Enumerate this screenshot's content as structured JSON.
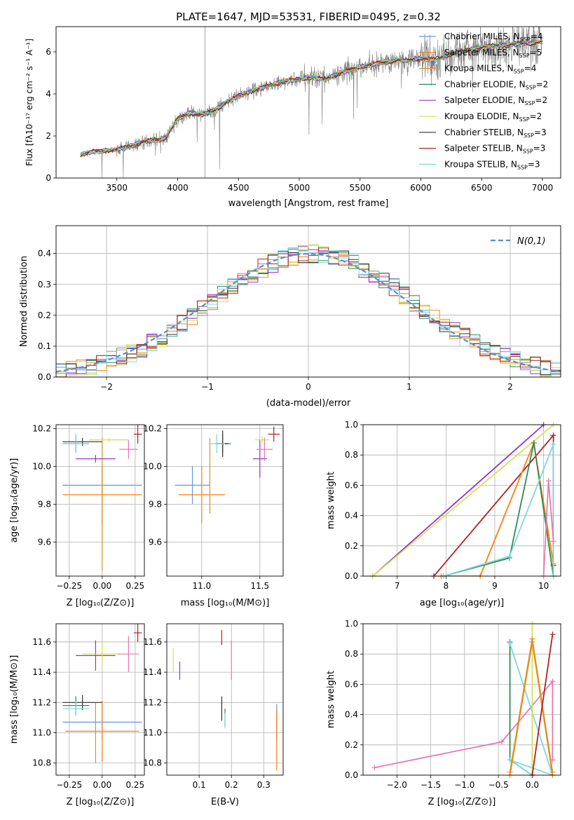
{
  "figure": {
    "title": "PLATE=1647, MJD=53531, FIBERID=0495, z=0.32",
    "spectrum_legend": [
      {
        "name": "Chabrier MILES",
        "nssp": "4",
        "color": "#6495ed"
      },
      {
        "name": "Salpeter MILES",
        "nssp": "5",
        "color": "#ff7f0e"
      },
      {
        "name": "Kroupa MILES",
        "nssp": "4",
        "color": "#d99425"
      },
      {
        "name": "Chabrier ELODIE",
        "nssp": "2",
        "color": "#2e8b57"
      },
      {
        "name": "Salpeter ELODIE",
        "nssp": "2",
        "color": "#9932cc"
      },
      {
        "name": "Kroupa ELODIE",
        "nssp": "2",
        "color": "#d4e157"
      },
      {
        "name": "Chabrier STELIB",
        "nssp": "3",
        "color": "#333333"
      },
      {
        "name": "Salpeter STELIB",
        "nssp": "3",
        "color": "#b22222"
      },
      {
        "name": "Kroupa STELIB",
        "nssp": "3",
        "color": "#7fd8d8"
      }
    ],
    "nssp_prefix": "N",
    "nssp_sub": "SSP",
    "hist_legend": "N(0,1)"
  },
  "chart_data": [
    {
      "id": "spectrum",
      "type": "line",
      "xlabel": "wavelength [Angstrom, rest frame]",
      "ylabel": "Flux [f_λ 10^-17 erg cm^-2 s^-1 A^-1]",
      "xlim": [
        3000,
        7150
      ],
      "ylim": [
        0,
        7.2
      ],
      "xticks": [
        3500,
        4000,
        4500,
        5000,
        5500,
        6000,
        6500,
        7000
      ],
      "yticks": [
        0,
        2,
        4,
        6
      ],
      "grid": false,
      "legend_position": "top-right",
      "model_continuum": {
        "x": [
          3200,
          3300,
          3400,
          3500,
          3600,
          3700,
          3800,
          3900,
          4000,
          4100,
          4200,
          4300,
          4400,
          4500,
          4600,
          4700,
          4800,
          4900,
          5000,
          5100,
          5200,
          5300,
          5400,
          5500,
          5600,
          5700,
          5800,
          5900,
          6000,
          6100,
          6200,
          6300,
          6400,
          6500,
          6600,
          6700,
          6800,
          6900,
          7000
        ],
        "y": [
          1.1,
          1.25,
          1.3,
          1.35,
          1.5,
          1.7,
          1.8,
          1.9,
          2.8,
          3.1,
          3.0,
          3.2,
          3.6,
          3.9,
          4.1,
          4.3,
          4.5,
          4.6,
          4.7,
          4.8,
          4.7,
          4.9,
          5.1,
          5.3,
          5.4,
          5.5,
          5.6,
          5.6,
          5.7,
          5.6,
          5.8,
          6.0,
          6.1,
          6.2,
          6.3,
          6.3,
          6.4,
          6.4,
          6.5
        ]
      }
    },
    {
      "id": "residual-histogram",
      "type": "line",
      "xlabel": "(data-model)/error",
      "ylabel": "Normed distribution",
      "xlim": [
        -2.5,
        2.5
      ],
      "ylim": [
        0,
        0.49
      ],
      "xticks": [
        -2,
        -1,
        0,
        1,
        2
      ],
      "yticks": [
        0.0,
        0.1,
        0.2,
        0.3,
        0.4
      ],
      "grid": true,
      "legend_position": "top-right",
      "gaussian": {
        "mean": 0,
        "sigma": 1
      }
    },
    {
      "id": "age-vs-Z",
      "type": "scatter",
      "xlabel": "Z [log10(Z/Zsun)]",
      "ylabel": "age [log10(age/yr)]",
      "xlim": [
        -0.35,
        0.32
      ],
      "ylim": [
        9.42,
        10.22
      ],
      "xticks": [
        -0.25,
        0.0,
        0.25
      ],
      "yticks": [
        9.6,
        9.8,
        10.0,
        10.2
      ],
      "grid": true,
      "points": [
        {
          "x": 0.0,
          "y": 9.9,
          "xerr": 0.3,
          "yerr": 0.1,
          "color": "#6495ed"
        },
        {
          "x": 0.0,
          "y": 9.85,
          "xerr": 0.3,
          "yerr": 0.15,
          "color": "#ff7f0e"
        },
        {
          "x": 0.0,
          "y": 9.8,
          "xerr": 0.0,
          "yerr": 0.35,
          "color": "#d99425"
        },
        {
          "x": -0.2,
          "y": 10.12,
          "xerr": 0.1,
          "yerr": 0.05,
          "color": "#2e8b57"
        },
        {
          "x": -0.05,
          "y": 10.04,
          "xerr": 0.15,
          "yerr": 0.02,
          "color": "#9932cc"
        },
        {
          "x": 0.05,
          "y": 10.14,
          "xerr": 0.15,
          "yerr": 0.01,
          "color": "#d4e157"
        },
        {
          "x": -0.15,
          "y": 10.13,
          "xerr": 0.15,
          "yerr": 0.02,
          "color": "#333333"
        },
        {
          "x": 0.27,
          "y": 10.17,
          "xerr": 0.03,
          "yerr": 0.05,
          "color": "#b22222"
        },
        {
          "x": -0.2,
          "y": 10.12,
          "xerr": 0.1,
          "yerr": 0.05,
          "color": "#7fd8d8"
        },
        {
          "x": 0.2,
          "y": 10.09,
          "xerr": 0.07,
          "yerr": 0.05,
          "color": "#e879b0"
        }
      ]
    },
    {
      "id": "age-vs-mass",
      "type": "scatter",
      "xlabel": "mass [log10(M/Msun)]",
      "ylabel": "",
      "xlim": [
        10.7,
        11.7
      ],
      "ylim": [
        9.42,
        10.22
      ],
      "xticks": [
        11.0,
        11.5
      ],
      "yticks": [
        9.6,
        9.8,
        10.0,
        10.2
      ],
      "grid": true,
      "points": [
        {
          "x": 10.92,
          "y": 9.9,
          "xerr": 0.15,
          "yerr": 0.1,
          "color": "#6495ed"
        },
        {
          "x": 11.0,
          "y": 9.85,
          "xerr": 0.2,
          "yerr": 0.15,
          "color": "#ff7f0e"
        },
        {
          "x": 11.07,
          "y": 9.95,
          "xerr": 0.0,
          "yerr": 0.2,
          "color": "#d99425"
        },
        {
          "x": 11.18,
          "y": 10.12,
          "xerr": 0.07,
          "yerr": 0.05,
          "color": "#2e8b57"
        },
        {
          "x": 11.5,
          "y": 10.04,
          "xerr": 0.06,
          "yerr": 0.1,
          "color": "#9932cc"
        },
        {
          "x": 11.52,
          "y": 10.14,
          "xerr": 0.06,
          "yerr": 0.02,
          "color": "#d4e157"
        },
        {
          "x": 11.18,
          "y": 10.12,
          "xerr": 0.05,
          "yerr": 0.07,
          "color": "#333333"
        },
        {
          "x": 11.62,
          "y": 10.17,
          "xerr": 0.05,
          "yerr": 0.04,
          "color": "#b22222"
        },
        {
          "x": 11.13,
          "y": 10.12,
          "xerr": 0.07,
          "yerr": 0.05,
          "color": "#7fd8d8"
        },
        {
          "x": 11.54,
          "y": 10.09,
          "xerr": 0.07,
          "yerr": 0.06,
          "color": "#e879b0"
        }
      ]
    },
    {
      "id": "mass-weight-vs-age",
      "type": "line",
      "xlabel": "age [log10(age/yr)]",
      "ylabel": "mass weight",
      "xlim": [
        6.3,
        10.35
      ],
      "ylim": [
        0,
        1.0
      ],
      "xticks": [
        7,
        8,
        9,
        10
      ],
      "yticks": [
        0.0,
        0.2,
        0.4,
        0.6,
        0.8,
        1.0
      ],
      "grid": true,
      "series": [
        {
          "color": "#9932cc",
          "x": [
            6.5,
            10.0
          ],
          "y": [
            0.0,
            1.0
          ]
        },
        {
          "color": "#d4e157",
          "x": [
            6.5,
            10.2
          ],
          "y": [
            0.0,
            1.0
          ]
        },
        {
          "color": "#b22222",
          "x": [
            7.75,
            10.2,
            10.2
          ],
          "y": [
            0.0,
            0.93,
            0.07
          ]
        },
        {
          "color": "#ff7f0e",
          "x": [
            7.9,
            8.7,
            9.8,
            10.2
          ],
          "y": [
            0.0,
            0.0,
            0.88,
            0.08
          ]
        },
        {
          "color": "#2e8b57",
          "x": [
            7.95,
            9.3,
            9.8,
            10.2
          ],
          "y": [
            0.0,
            0.12,
            0.88,
            0.0
          ]
        },
        {
          "color": "#7fd8d8",
          "x": [
            7.95,
            9.3,
            10.2,
            10.2
          ],
          "y": [
            0.0,
            0.13,
            0.87,
            0.0
          ]
        },
        {
          "color": "#e879b0",
          "x": [
            10.0,
            10.1,
            10.2
          ],
          "y": [
            0.0,
            0.63,
            0.23
          ]
        }
      ]
    },
    {
      "id": "mass-vs-Z",
      "type": "scatter",
      "xlabel": "Z [log10(Z/Zsun)]",
      "ylabel": "mass [log10(M/Msun)]",
      "xlim": [
        -0.35,
        0.32
      ],
      "ylim": [
        10.72,
        11.72
      ],
      "xticks": [
        -0.25,
        0.0,
        0.25
      ],
      "yticks": [
        10.8,
        11.0,
        11.2,
        11.4,
        11.6
      ],
      "grid": true,
      "points": [
        {
          "x": 0.0,
          "y": 11.07,
          "xerr": 0.3,
          "yerr": 0.12,
          "color": "#6495ed"
        },
        {
          "x": 0.0,
          "y": 11.01,
          "xerr": 0.28,
          "yerr": 0.2,
          "color": "#ff7f0e"
        },
        {
          "x": -0.05,
          "y": 11.0,
          "xerr": 0.0,
          "yerr": 0.2,
          "color": "#d99425"
        },
        {
          "x": -0.2,
          "y": 11.18,
          "xerr": 0.1,
          "yerr": 0.06,
          "color": "#2e8b57"
        },
        {
          "x": -0.05,
          "y": 11.51,
          "xerr": 0.15,
          "yerr": 0.1,
          "color": "#9932cc"
        },
        {
          "x": 0.0,
          "y": 11.52,
          "xerr": 0.15,
          "yerr": 0.08,
          "color": "#d4e157"
        },
        {
          "x": -0.15,
          "y": 11.2,
          "xerr": 0.15,
          "yerr": 0.05,
          "color": "#333333"
        },
        {
          "x": 0.27,
          "y": 11.66,
          "xerr": 0.03,
          "yerr": 0.06,
          "color": "#b22222"
        },
        {
          "x": -0.2,
          "y": 11.16,
          "xerr": 0.1,
          "yerr": 0.05,
          "color": "#7fd8d8"
        },
        {
          "x": 0.2,
          "y": 11.52,
          "xerr": 0.08,
          "yerr": 0.12,
          "color": "#e879b0"
        }
      ]
    },
    {
      "id": "mass-vs-EBV",
      "type": "scatter",
      "xlabel": "E(B-V)",
      "ylabel": "",
      "xlim": [
        0.0,
        0.36
      ],
      "ylim": [
        10.72,
        11.72
      ],
      "xticks": [
        0.1,
        0.2,
        0.3
      ],
      "yticks": [
        10.8,
        11.0,
        11.2,
        11.4,
        11.6
      ],
      "grid": true,
      "points": [
        {
          "x": 0.34,
          "y": 11.07,
          "xerr": 0.0,
          "yerr": 0.12,
          "color": "#6495ed"
        },
        {
          "x": 0.34,
          "y": 10.95,
          "xerr": 0.0,
          "yerr": 0.2,
          "color": "#ff7f0e"
        },
        {
          "x": 0.18,
          "y": 11.1,
          "xerr": 0.0,
          "yerr": 0.06,
          "color": "#2e8b57"
        },
        {
          "x": 0.04,
          "y": 11.41,
          "xerr": 0.0,
          "yerr": 0.06,
          "color": "#9932cc"
        },
        {
          "x": 0.02,
          "y": 11.48,
          "xerr": 0.0,
          "yerr": 0.08,
          "color": "#d4e157"
        },
        {
          "x": 0.17,
          "y": 11.16,
          "xerr": 0.0,
          "yerr": 0.08,
          "color": "#333333"
        },
        {
          "x": 0.17,
          "y": 11.63,
          "xerr": 0.0,
          "yerr": 0.05,
          "color": "#b22222"
        },
        {
          "x": 0.18,
          "y": 11.08,
          "xerr": 0.0,
          "yerr": 0.05,
          "color": "#7fd8d8"
        },
        {
          "x": 0.2,
          "y": 11.48,
          "xerr": 0.0,
          "yerr": 0.13,
          "color": "#e879b0"
        }
      ]
    },
    {
      "id": "mass-weight-vs-Z",
      "type": "line",
      "xlabel": "Z [log10(Z/Zsun)]",
      "ylabel": "mass weight",
      "xlim": [
        -2.5,
        0.42
      ],
      "ylim": [
        0,
        1.0
      ],
      "xticks": [
        -2.0,
        -1.5,
        -1.0,
        -0.5,
        0.0
      ],
      "yticks": [
        0.0,
        0.2,
        0.4,
        0.6,
        0.8,
        1.0
      ],
      "grid": true,
      "series": [
        {
          "color": "#e879b0",
          "x": [
            -2.33,
            -0.45,
            0.3,
            0.3
          ],
          "y": [
            0.05,
            0.22,
            0.62,
            0.1
          ]
        },
        {
          "color": "#2e8b57",
          "x": [
            -0.33,
            -0.33,
            0.0
          ],
          "y": [
            0.88,
            0.1,
            0.0
          ]
        },
        {
          "color": "#7fd8d8",
          "x": [
            -0.33,
            0.3,
            -0.33,
            0.0
          ],
          "y": [
            0.87,
            0.0,
            0.1,
            0.0
          ]
        },
        {
          "color": "#d4e157",
          "x": [
            0.0,
            0.0
          ],
          "y": [
            1.0,
            0.0
          ]
        },
        {
          "color": "#ff7f0e",
          "x": [
            -0.33,
            0.0,
            0.3
          ],
          "y": [
            0.0,
            0.88,
            0.0
          ]
        },
        {
          "color": "#d99425",
          "x": [
            -0.33,
            0.0,
            0.3
          ],
          "y": [
            0.02,
            0.9,
            0.02
          ]
        },
        {
          "color": "#b22222",
          "x": [
            0.0,
            0.3
          ],
          "y": [
            0.0,
            0.93
          ]
        }
      ]
    }
  ]
}
